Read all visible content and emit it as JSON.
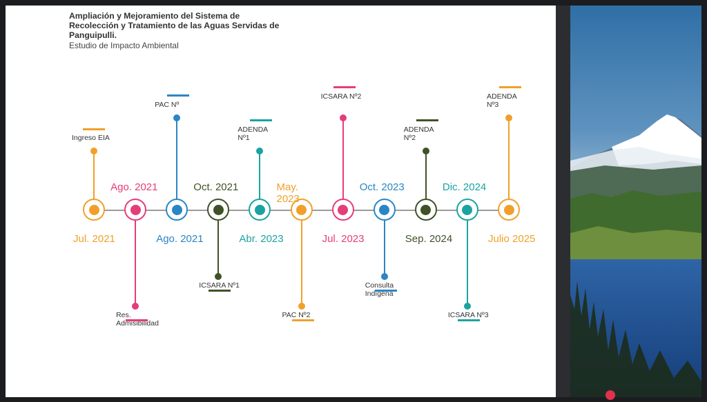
{
  "header": {
    "title": "Ampliación y Mejoramiento del Sistema de Recolección y Tratamiento de las Aguas Servidas de Panguipulli.",
    "subtitle": "Estudio de Impacto Ambiental"
  },
  "colors": {
    "orange": "#f0a02a",
    "pink": "#e63c7a",
    "blue": "#2a86c5",
    "olive": "#3f5226",
    "teal": "#1aa3a3"
  },
  "milestones": [
    {
      "top_date": "",
      "bottom_date": "Jul. 2021",
      "label": "Ingreso EIA",
      "color": "orange",
      "dir": "up"
    },
    {
      "top_date": "Ago. 2021",
      "bottom_date": "",
      "label": "Res. Admisibilidad",
      "color": "pink",
      "dir": "down"
    },
    {
      "top_date": "",
      "bottom_date": "Ago. 2021",
      "label": "PAC Nº",
      "color": "blue",
      "dir": "up"
    },
    {
      "top_date": "Oct. 2021",
      "bottom_date": "",
      "label": "ICSARA Nº1",
      "color": "olive",
      "dir": "down"
    },
    {
      "top_date": "",
      "bottom_date": "Abr. 2023",
      "label": "ADENDA Nº1",
      "color": "teal",
      "dir": "up"
    },
    {
      "top_date": "May. 2023",
      "bottom_date": "",
      "label": "PAC Nº2",
      "color": "orange",
      "dir": "down"
    },
    {
      "top_date": "",
      "bottom_date": "Jul. 2023",
      "label": "ICSARA Nº2",
      "color": "pink",
      "dir": "up"
    },
    {
      "top_date": "Oct. 2023",
      "bottom_date": "",
      "label": "Consulta Indígena",
      "color": "blue",
      "dir": "down"
    },
    {
      "top_date": "",
      "bottom_date": "Sep. 2024",
      "label": "ADENDA Nº2",
      "color": "olive",
      "dir": "up"
    },
    {
      "top_date": "Dic. 2024",
      "bottom_date": "",
      "label": "ICSARA Nº3",
      "color": "teal",
      "dir": "down"
    },
    {
      "top_date": "",
      "bottom_date": "Julio 2025",
      "label": "ADENDA Nº3",
      "color": "orange",
      "dir": "up"
    }
  ]
}
